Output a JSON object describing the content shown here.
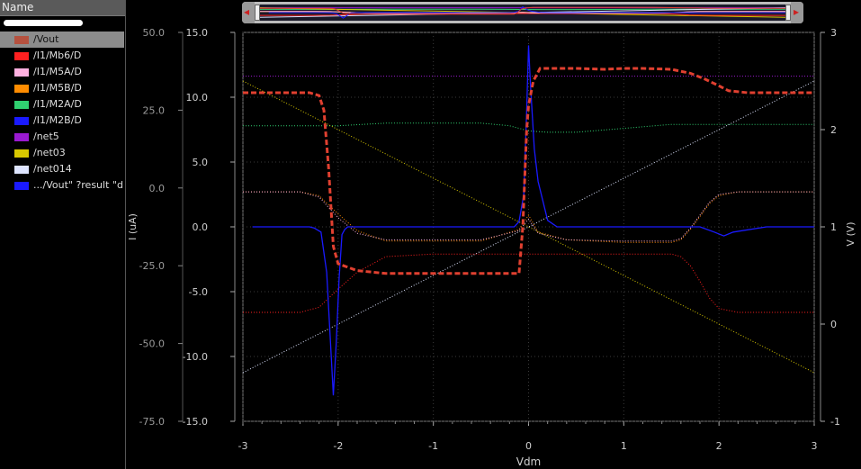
{
  "sidebar": {
    "header": "Name",
    "filter_value": "",
    "items": [
      {
        "label": "/Vout",
        "color": "#b5513f",
        "selected": true
      },
      {
        "label": "/I1/Mb6/D",
        "color": "#ff2020",
        "selected": false
      },
      {
        "label": "/I1/M5A/D",
        "color": "#ffb0e0",
        "selected": false
      },
      {
        "label": "/I1/M5B/D",
        "color": "#ff8c00",
        "selected": false
      },
      {
        "label": "/I1/M2A/D",
        "color": "#30d070",
        "selected": false
      },
      {
        "label": "/I1/M2B/D",
        "color": "#1a1aff",
        "selected": false
      },
      {
        "label": "/net5",
        "color": "#9a1ad0",
        "selected": false
      },
      {
        "label": "/net03",
        "color": "#d8c800",
        "selected": false
      },
      {
        "label": "/net014",
        "color": "#dde4ff",
        "selected": false
      },
      {
        "label": ".../Vout\" ?result \"d",
        "color": "#1a1aff",
        "selected": false
      }
    ]
  },
  "chart_data": {
    "type": "line",
    "xlabel": "Vdm",
    "x_ticks": [
      "-3",
      "-2",
      "-1",
      "0",
      "1",
      "2",
      "3"
    ],
    "xlim": [
      -3,
      3
    ],
    "left_axis_outer": {
      "ticks": [
        "50.0",
        "25.0",
        "0.0",
        "-25.0",
        "-50.0",
        "-75.0"
      ],
      "ylim": [
        -75,
        50
      ]
    },
    "left_axis_inner": {
      "label": "I (uA)",
      "ticks": [
        "15.0",
        "10.0",
        "5.0",
        "0.0",
        "-5.0",
        "-10.0",
        "-15.0"
      ],
      "ylim": [
        -15,
        15
      ]
    },
    "right_axis": {
      "label": "V (V)",
      "ticks": [
        "3",
        "2",
        "1",
        "0",
        "-1"
      ],
      "ylim": [
        -1,
        3
      ]
    },
    "grid": true,
    "series": [
      {
        "name": "/Vout",
        "axis": "V",
        "color": "#e04030",
        "dashed": true,
        "x": [
          -3,
          -2.3,
          -2.2,
          -2.15,
          -2.1,
          -2.05,
          -2.0,
          -1.8,
          -1.5,
          -1.0,
          -0.5,
          -0.1,
          -0.06,
          -0.02,
          0.0,
          0.05,
          0.12,
          0.3,
          0.5,
          0.8,
          1.0,
          1.2,
          1.5,
          1.7,
          1.85,
          2.0,
          2.1,
          2.3,
          2.6,
          3.0
        ],
        "y": [
          2.38,
          2.38,
          2.35,
          2.2,
          1.6,
          0.8,
          0.62,
          0.55,
          0.52,
          0.52,
          0.52,
          0.52,
          1.0,
          2.0,
          2.25,
          2.5,
          2.63,
          2.63,
          2.63,
          2.62,
          2.63,
          2.63,
          2.62,
          2.58,
          2.52,
          2.45,
          2.4,
          2.38,
          2.38,
          2.38
        ]
      },
      {
        "name": "/I1/M2B/D",
        "axis": "I",
        "color": "#1a1aff",
        "x": [
          -2.9,
          -2.3,
          -2.25,
          -2.18,
          -2.12,
          -2.08,
          -2.05,
          -2.02,
          -1.99,
          -1.96,
          -1.93,
          -1.9,
          -1.6,
          -1.0,
          -0.5,
          -0.15,
          -0.1,
          -0.05,
          -0.02,
          0.0,
          0.02,
          0.06,
          0.1,
          0.15,
          0.2,
          0.3,
          0.6,
          1.0,
          1.5,
          1.8,
          1.95,
          2.05,
          2.15,
          2.5,
          3.0
        ],
        "y": [
          0.0,
          0.0,
          -0.1,
          -0.4,
          -3.5,
          -9.0,
          -13.0,
          -9.0,
          -4.0,
          -0.6,
          -0.2,
          0.0,
          0.0,
          0.0,
          0.0,
          0.0,
          0.4,
          2.5,
          9.0,
          14.0,
          11.0,
          6.0,
          3.5,
          2.0,
          0.5,
          0.0,
          0.0,
          0.0,
          0.0,
          0.0,
          -0.4,
          -0.7,
          -0.4,
          0.0,
          0.0
        ]
      },
      {
        "name": "/I1/M2A/D",
        "axis": "I",
        "color": "#30d070",
        "dotted": true,
        "x": [
          -3,
          -2.0,
          -1.5,
          -1.0,
          -0.5,
          -0.2,
          0.0,
          0.2,
          0.5,
          1.0,
          1.5,
          2.0,
          3.0
        ],
        "y": [
          7.8,
          7.8,
          8.0,
          8.0,
          8.0,
          7.8,
          7.4,
          7.3,
          7.3,
          7.6,
          7.9,
          7.9,
          7.9
        ]
      },
      {
        "name": "/net5",
        "axis": "V",
        "color": "#9a1ad0",
        "dotted": true,
        "x": [
          -3,
          3
        ],
        "y": [
          2.55,
          2.55
        ]
      },
      {
        "name": "/net03",
        "axis": "V",
        "color": "#d8c800",
        "dotted": true,
        "x": [
          -3,
          3
        ],
        "y": [
          2.5,
          -0.5
        ]
      },
      {
        "name": "/net014",
        "axis": "V",
        "color": "#dde4ff",
        "dotted": true,
        "x": [
          -3,
          3
        ],
        "y": [
          -0.5,
          2.5
        ]
      },
      {
        "name": "/I1/Mb6/D",
        "axis": "I",
        "color": "#ff2020",
        "dotted": true,
        "x": [
          -3,
          -2.4,
          -2.2,
          -2.0,
          -1.8,
          -1.5,
          -1.0,
          -0.5,
          -0.1,
          0.0,
          0.1,
          0.4,
          1.0,
          1.5,
          1.6,
          1.7,
          1.8,
          1.9,
          2.0,
          2.2,
          2.5,
          3.0
        ],
        "y": [
          -6.6,
          -6.6,
          -6.2,
          -4.8,
          -3.5,
          -2.3,
          -2.1,
          -2.1,
          -2.1,
          -2.1,
          -2.1,
          -2.1,
          -2.1,
          -2.1,
          -2.3,
          -3.0,
          -4.2,
          -5.5,
          -6.3,
          -6.6,
          -6.6,
          -6.6
        ]
      },
      {
        "name": "/I1/M5B/D",
        "axis": "I",
        "color": "#ff8c00",
        "dotted": true,
        "x": [
          -3,
          -2.4,
          -2.2,
          -2.0,
          -1.8,
          -1.5,
          -1.0,
          -0.5,
          -0.1,
          0.0,
          0.1,
          0.4,
          1.0,
          1.5,
          1.6,
          1.7,
          1.8,
          1.9,
          2.0,
          2.2,
          3.0
        ],
        "y": [
          2.7,
          2.7,
          2.4,
          1.0,
          -0.3,
          -1.1,
          -1.1,
          -1.1,
          -0.2,
          0.9,
          -0.4,
          -1.0,
          -1.2,
          -1.2,
          -1.0,
          -0.2,
          0.8,
          1.8,
          2.4,
          2.7,
          2.7
        ]
      },
      {
        "name": "/I1/M5A/D",
        "axis": "I",
        "color": "#ffb0e0",
        "dotted": true,
        "x": [
          -3,
          -2.4,
          -2.2,
          -2.0,
          -1.8,
          -1.5,
          -1.0,
          -0.5,
          -0.1,
          0.0,
          0.1,
          0.4,
          1.0,
          1.5,
          1.6,
          1.7,
          1.8,
          1.9,
          2.0,
          2.2,
          3.0
        ],
        "y": [
          2.7,
          2.7,
          2.3,
          0.7,
          -0.5,
          -1.0,
          -1.0,
          -1.0,
          -0.3,
          0.6,
          -0.5,
          -1.0,
          -1.1,
          -1.1,
          -0.9,
          -0.1,
          0.9,
          1.9,
          2.5,
          2.7,
          2.7
        ]
      }
    ]
  },
  "overview": {
    "left_arrow": "◂",
    "right_arrow": "▸"
  }
}
